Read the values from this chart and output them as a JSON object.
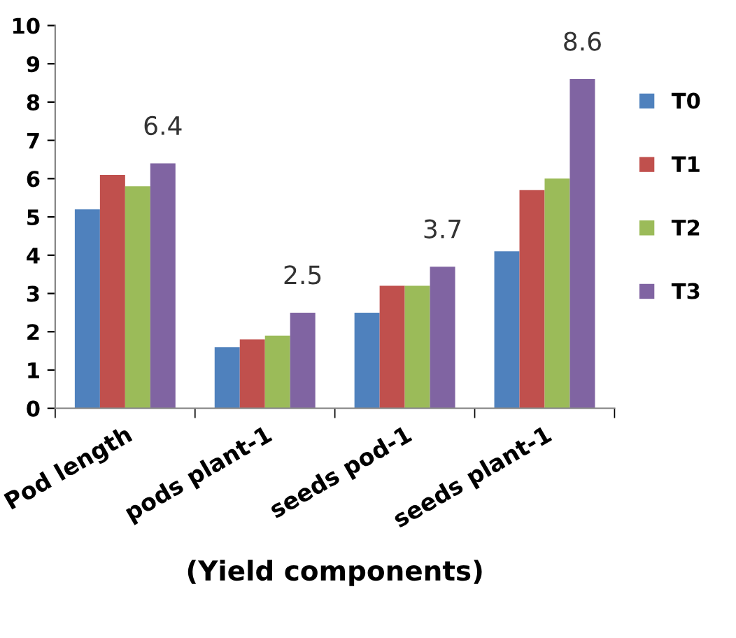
{
  "chart_data": {
    "type": "bar",
    "xlabel": "(Yield components)",
    "categories": [
      "Pod length",
      "pods plant-1",
      "seeds pod-1",
      "seeds plant-1"
    ],
    "series": [
      {
        "name": "T0",
        "color": "#4f81bd",
        "values": [
          5.2,
          1.6,
          2.5,
          4.1
        ]
      },
      {
        "name": "T1",
        "color": "#c0504d",
        "values": [
          6.1,
          1.8,
          3.2,
          5.7
        ]
      },
      {
        "name": "T2",
        "color": "#9bbb59",
        "values": [
          5.8,
          1.9,
          3.2,
          6.0
        ]
      },
      {
        "name": "T3",
        "color": "#8064a2",
        "values": [
          6.4,
          2.5,
          3.7,
          8.6
        ],
        "value_labels": [
          "6.4",
          "2.5",
          "3.7",
          "8.6"
        ]
      }
    ],
    "ylim": [
      0,
      10
    ],
    "yticks": [
      0,
      1,
      2,
      3,
      4,
      5,
      6,
      7,
      8,
      9,
      10
    ],
    "grid": false,
    "legend": "right"
  }
}
